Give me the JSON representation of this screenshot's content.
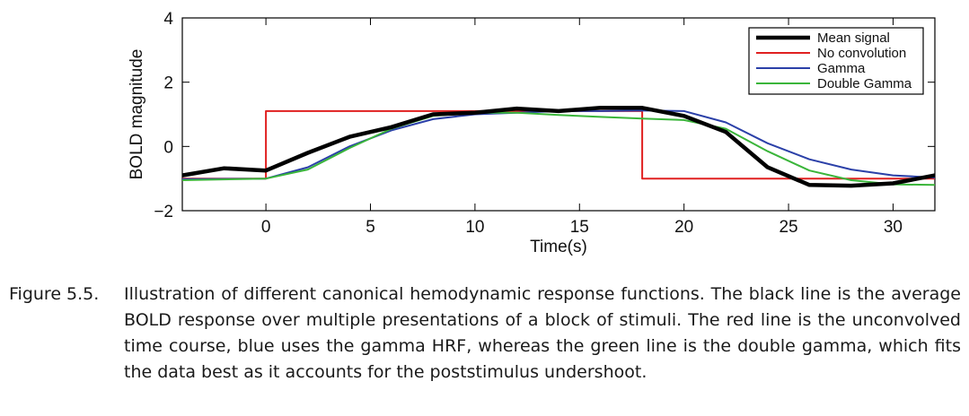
{
  "chart_data": {
    "type": "line",
    "xlabel": "Time(s)",
    "ylabel": "BOLD magnitude",
    "xlim": [
      -4,
      32
    ],
    "ylim": [
      -2,
      4
    ],
    "xticks": [
      0,
      5,
      10,
      15,
      20,
      25,
      30
    ],
    "yticks": [
      -2,
      0,
      2,
      4
    ],
    "grid": false,
    "legend_position": "top-right",
    "series": [
      {
        "name": "Mean signal",
        "color": "#000000",
        "x": [
          -4,
          -2,
          0,
          2,
          4,
          6,
          8,
          10,
          12,
          14,
          16,
          18,
          20,
          22,
          24,
          26,
          28,
          30,
          32
        ],
        "y": [
          -0.9,
          -0.68,
          -0.75,
          -0.2,
          0.3,
          0.6,
          1.0,
          1.05,
          1.18,
          1.1,
          1.2,
          1.2,
          0.95,
          0.45,
          -0.65,
          -1.2,
          -1.22,
          -1.15,
          -0.9
        ]
      },
      {
        "name": "No convolution",
        "color": "#e02020",
        "x": [
          -4,
          0,
          0,
          18,
          18,
          32
        ],
        "y": [
          -1.0,
          -1.0,
          1.1,
          1.1,
          -1.0,
          -1.0
        ]
      },
      {
        "name": "Gamma",
        "color": "#2b40a8",
        "x": [
          -4,
          0,
          2,
          4,
          6,
          8,
          10,
          12,
          14,
          16,
          18,
          20,
          22,
          24,
          26,
          28,
          30,
          32
        ],
        "y": [
          -1.02,
          -1.0,
          -0.65,
          0.0,
          0.5,
          0.85,
          1.0,
          1.05,
          1.1,
          1.1,
          1.12,
          1.1,
          0.75,
          0.1,
          -0.4,
          -0.72,
          -0.9,
          -0.97
        ]
      },
      {
        "name": "Double Gamma",
        "color": "#3ab53a",
        "x": [
          -4,
          0,
          2,
          4,
          6,
          8,
          10,
          12,
          14,
          16,
          18,
          20,
          22,
          24,
          26,
          28,
          30,
          32
        ],
        "y": [
          -1.05,
          -1.0,
          -0.72,
          -0.05,
          0.55,
          0.95,
          1.05,
          1.05,
          0.98,
          0.92,
          0.87,
          0.82,
          0.55,
          -0.15,
          -0.75,
          -1.05,
          -1.18,
          -1.2
        ]
      }
    ]
  },
  "caption": {
    "label": "Figure 5.5.",
    "text": "Illustration of different canonical hemodynamic response functions. The black line is the average BOLD response over multiple presentations of a block of stimuli. The red line is the unconvolved time course, blue uses the gamma HRF, whereas the green line is the double gamma, which fits the data best as it accounts for the poststimulus undershoot."
  }
}
